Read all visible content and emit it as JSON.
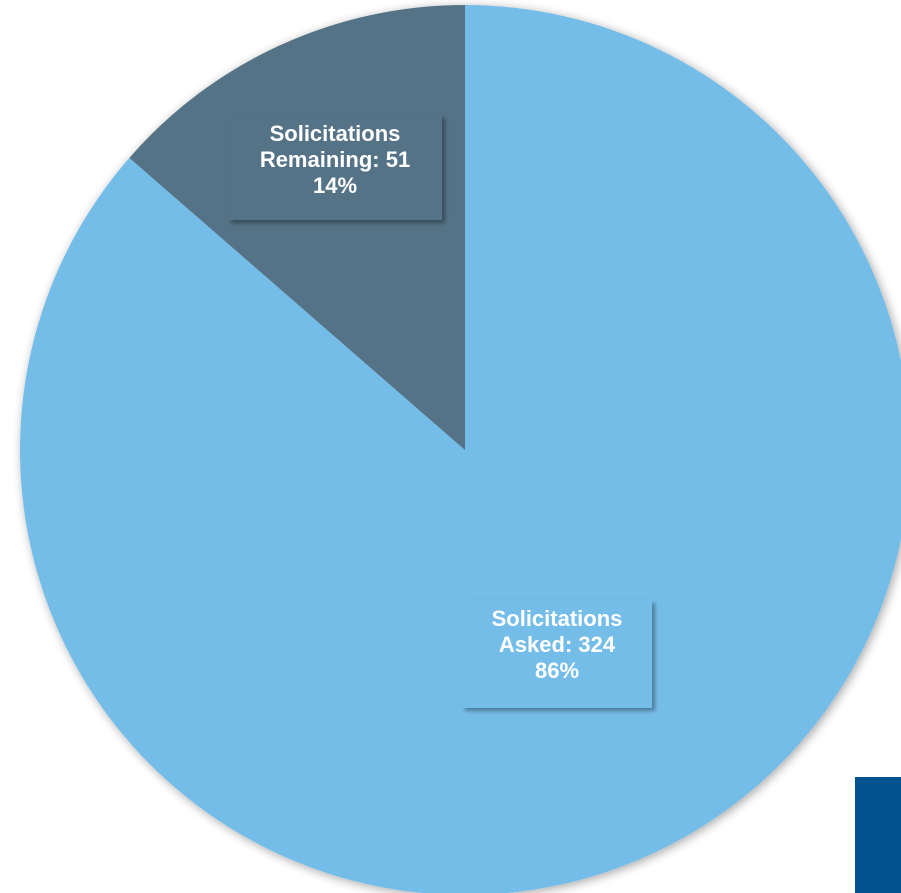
{
  "chart_data": {
    "type": "pie",
    "title": "",
    "slices": [
      {
        "name": "Solicitations Asked",
        "value": 324,
        "percent": 86,
        "color": "#74bde9",
        "label_lines": [
          "Solicitations",
          "Asked: 324",
          "86%"
        ]
      },
      {
        "name": "Solicitations Remaining",
        "value": 51,
        "percent": 14,
        "color": "#557387",
        "label_lines": [
          "Solicitations",
          "Remaining: 51",
          "14%"
        ]
      }
    ],
    "start_angle": "12 o'clock",
    "direction": "clockwise",
    "legend": "none"
  },
  "colors": {
    "corner_block": "#00538c"
  }
}
